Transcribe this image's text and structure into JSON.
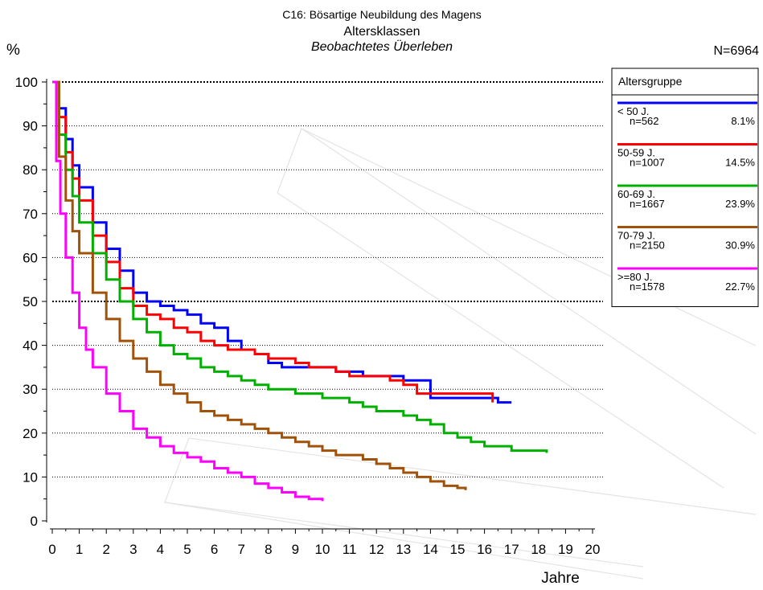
{
  "chart_data": {
    "type": "line",
    "step": true,
    "title": "C16: Bösartige Neubildung des Magens",
    "subtitle": "Altersklassen",
    "subtitle2": "Beobachtetes Überleben",
    "n_total": "N=6964",
    "ylabel": "%",
    "xlabel": "Jahre",
    "xlim": [
      0,
      20
    ],
    "ylim": [
      0,
      100
    ],
    "x_ticks": [
      "0",
      "1",
      "2",
      "3",
      "4",
      "5",
      "6",
      "7",
      "8",
      "9",
      "10",
      "11",
      "12",
      "13",
      "14",
      "15",
      "16",
      "17",
      "18",
      "19",
      "20"
    ],
    "y_ticks": [
      "0",
      "10",
      "20",
      "30",
      "40",
      "50",
      "60",
      "70",
      "80",
      "90",
      "100"
    ],
    "grid": "horizontal dotted",
    "legend": {
      "title": "Altersgruppe",
      "placement": "right",
      "entries": [
        {
          "label": "< 50 J.",
          "n": "n=562",
          "pct": "8.1%",
          "color": "#0000ff"
        },
        {
          "label": "50-59 J.",
          "n": "n=1007",
          "pct": "14.5%",
          "color": "#ff0000"
        },
        {
          "label": "60-69 J.",
          "n": "n=1667",
          "pct": "23.9%",
          "color": "#00b000"
        },
        {
          "label": "70-79 J.",
          "n": "n=2150",
          "pct": "30.9%",
          "color": "#a0520a"
        },
        {
          "label": ">=80 J.",
          "n": "n=1578",
          "pct": "22.7%",
          "color": "#ff00ff"
        }
      ]
    },
    "series": [
      {
        "name": "< 50 J.",
        "color": "#0000ff",
        "x": [
          0,
          0.25,
          0.5,
          0.75,
          1,
          1.5,
          2,
          2.5,
          3,
          3.5,
          4,
          4.5,
          5,
          5.5,
          6,
          6.5,
          7,
          7.5,
          8,
          8.5,
          9,
          9.5,
          10,
          10.5,
          11,
          11.5,
          12,
          12.5,
          13,
          13.5,
          14,
          14.5,
          15,
          15.5,
          16,
          16.5,
          17
        ],
        "values": [
          100,
          94,
          87,
          81,
          76,
          68,
          62,
          57,
          52,
          50,
          49,
          48,
          47,
          45,
          44,
          41,
          39,
          38,
          36,
          35,
          35,
          35,
          35,
          34,
          34,
          33,
          33,
          33,
          32,
          32,
          28,
          28,
          28,
          28,
          28,
          27,
          27
        ]
      },
      {
        "name": "50-59 J.",
        "color": "#ff0000",
        "x": [
          0,
          0.25,
          0.5,
          0.75,
          1,
          1.5,
          2,
          2.5,
          3,
          3.5,
          4,
          4.5,
          5,
          5.5,
          6,
          6.5,
          7,
          7.5,
          8,
          8.5,
          9,
          9.5,
          10,
          10.5,
          11,
          11.5,
          12,
          12.5,
          13,
          13.5,
          14,
          14.5,
          15,
          15.5,
          16,
          16.3
        ],
        "values": [
          100,
          92,
          84,
          78,
          73,
          65,
          59,
          53,
          49,
          47,
          46,
          44,
          43,
          41,
          40,
          39,
          39,
          38,
          37,
          37,
          36,
          35,
          35,
          34,
          33,
          33,
          33,
          32,
          31,
          29,
          29,
          29,
          29,
          29,
          29,
          27
        ]
      },
      {
        "name": "60-69 J.",
        "color": "#00b000",
        "x": [
          0,
          0.25,
          0.5,
          0.75,
          1,
          1.5,
          2,
          2.5,
          3,
          3.5,
          4,
          4.5,
          5,
          5.5,
          6,
          6.5,
          7,
          7.5,
          8,
          8.5,
          9,
          9.5,
          10,
          10.5,
          11,
          11.5,
          12,
          12.5,
          13,
          13.5,
          14,
          14.5,
          15,
          15.5,
          16,
          16.5,
          17,
          17.5,
          18,
          18.3
        ],
        "values": [
          100,
          88,
          80,
          74,
          68,
          61,
          55,
          50,
          46,
          43,
          40,
          38,
          37,
          35,
          34,
          33,
          32,
          31,
          30,
          30,
          29,
          29,
          28,
          28,
          27,
          26,
          25,
          25,
          24,
          23,
          22,
          20,
          19,
          18,
          17,
          17,
          16,
          16,
          16,
          15.5
        ]
      },
      {
        "name": "70-79 J.",
        "color": "#a0520a",
        "x": [
          0,
          0.25,
          0.5,
          0.75,
          1,
          1.5,
          2,
          2.5,
          3,
          3.5,
          4,
          4.5,
          5,
          5.5,
          6,
          6.5,
          7,
          7.5,
          8,
          8.5,
          9,
          9.5,
          10,
          10.5,
          11,
          11.5,
          12,
          12.5,
          13,
          13.5,
          14,
          14.5,
          15,
          15.3
        ],
        "values": [
          100,
          83,
          73,
          66,
          61,
          52,
          46,
          41,
          37,
          34,
          31,
          29,
          27,
          25,
          24,
          23,
          22,
          21,
          20,
          19,
          18,
          17,
          16,
          15,
          15,
          14,
          13,
          12,
          11,
          10,
          9,
          8,
          7.5,
          7
        ]
      },
      {
        "name": ">=80 J.",
        "color": "#ff00ff",
        "x": [
          0,
          0.15,
          0.3,
          0.5,
          0.75,
          1,
          1.25,
          1.5,
          2,
          2.5,
          3,
          3.5,
          4,
          4.5,
          5,
          5.5,
          6,
          6.5,
          7,
          7.5,
          8,
          8.5,
          9,
          9.5,
          10
        ],
        "values": [
          100,
          82,
          70,
          60,
          52,
          44,
          39,
          35,
          29,
          25,
          21,
          19,
          17,
          15.5,
          14.5,
          13.5,
          12,
          11,
          10,
          8.5,
          7.5,
          6.5,
          5.5,
          5,
          4.5
        ]
      }
    ]
  }
}
